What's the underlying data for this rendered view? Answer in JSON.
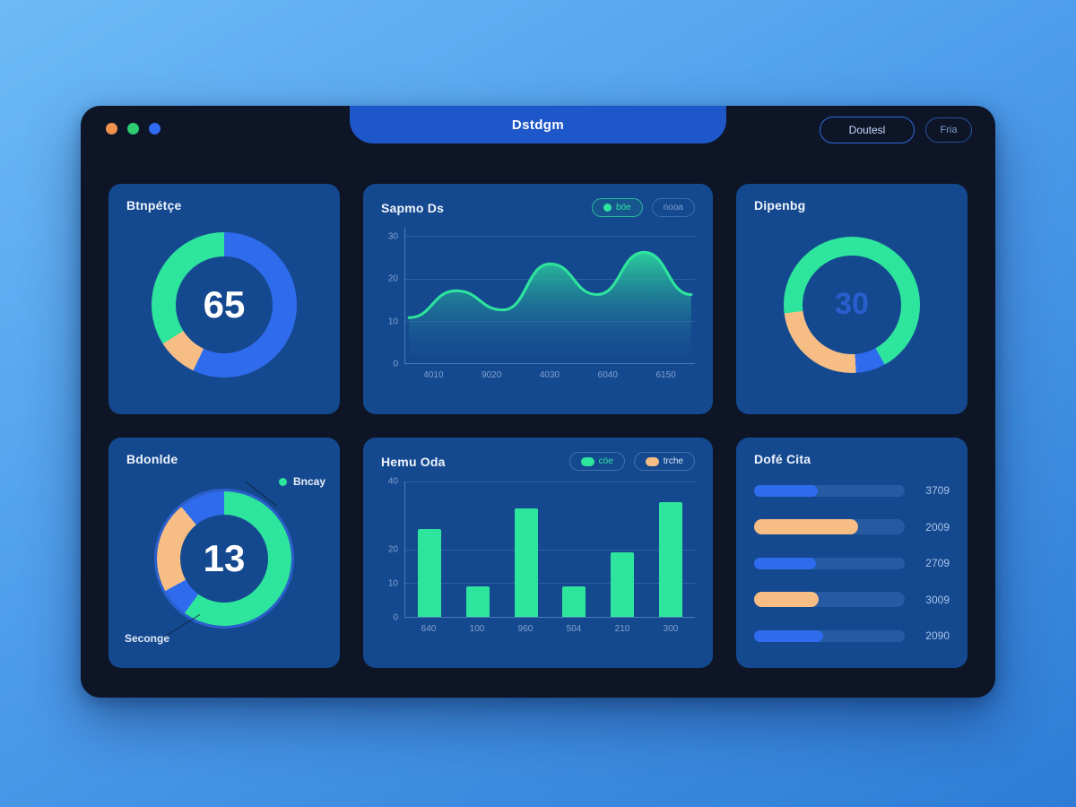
{
  "window": {
    "title": "Dstdgm",
    "traffic_lights": [
      "tl_orange",
      "tl_green",
      "tl_blue"
    ],
    "buttons": [
      {
        "label": "Doutesl"
      },
      {
        "label": "Fria"
      }
    ]
  },
  "colors": {
    "green": "#2ee59d",
    "blue": "#2f6bed",
    "orange": "#f6bd85",
    "tl_orange": "#f0924e",
    "tl_green": "#2ecc71",
    "tl_blue": "#2f6bf0",
    "card_bg": "#15498f",
    "window_bg": "#0d1526",
    "titlebar_blue": "#1e57c9",
    "area_fill_fade": "#1b4f9a"
  },
  "cards": {
    "donut_top_left": {
      "title": "Btnpétçe"
    },
    "area": {
      "title": "Sapmo Ds",
      "toggles": [
        {
          "label": "böe",
          "active": true
        },
        {
          "label": "nooa",
          "active": false
        }
      ]
    },
    "donut_top_right": {
      "title": "Dipenbg"
    },
    "donut_bottom_left": {
      "title": "Bdonlde",
      "legend": "Bncay",
      "callout": "Seconge"
    },
    "bar": {
      "title": "Hemu Oda",
      "legend": [
        {
          "label": "cöe",
          "color": "green"
        },
        {
          "label": "trche",
          "color": "orange"
        }
      ]
    },
    "hbar": {
      "title": "Dofé Cita"
    }
  },
  "chart_data": [
    {
      "type": "pie",
      "variant": "donut",
      "card": "top-left",
      "center_value": "65",
      "segments": [
        {
          "color": "blue",
          "pct": 57
        },
        {
          "color": "orange",
          "pct": 9
        },
        {
          "color": "green",
          "pct": 34
        }
      ]
    },
    {
      "type": "area",
      "card": "top-middle",
      "title": "Sapmo Ds",
      "x_labels": [
        "4010",
        "9020",
        "4030",
        "6040",
        "6150"
      ],
      "y_ticks": [
        30,
        20,
        10,
        0
      ],
      "ylim": [
        0,
        32
      ],
      "values": [
        10,
        17,
        12,
        24,
        16,
        27,
        16
      ],
      "grid": true,
      "line_color": "green"
    },
    {
      "type": "pie",
      "variant": "donut",
      "card": "top-right",
      "center_value": "30",
      "segments": [
        {
          "color": "green",
          "pct": 42
        },
        {
          "color": "blue",
          "pct": 7
        },
        {
          "color": "orange",
          "pct": 24
        },
        {
          "color": "green",
          "pct": 27
        }
      ]
    },
    {
      "type": "pie",
      "variant": "donut",
      "card": "bottom-left",
      "center_value": "13",
      "segments": [
        {
          "color": "green",
          "pct": 60
        },
        {
          "color": "blue",
          "pct": 7
        },
        {
          "color": "orange",
          "pct": 22
        },
        {
          "color": "blue",
          "pct": 11
        }
      ]
    },
    {
      "type": "bar",
      "card": "bottom-middle",
      "title": "Hemu Oda",
      "categories": [
        "640",
        "100",
        "960",
        "504",
        "210",
        "300"
      ],
      "values": [
        26,
        9,
        32,
        9,
        19,
        34
      ],
      "y_ticks": [
        40,
        20,
        10,
        0
      ],
      "ylim": [
        0,
        40
      ],
      "bar_color": "green",
      "grid": true
    },
    {
      "type": "bar",
      "variant": "horizontal",
      "card": "bottom-right",
      "title": "Dofé Cita",
      "rows": [
        {
          "value": "3709",
          "color": "blue",
          "pct": 42
        },
        {
          "value": "2009",
          "color": "orange",
          "pct": 69
        },
        {
          "value": "2709",
          "color": "blue",
          "pct": 41
        },
        {
          "value": "3009",
          "color": "orange",
          "pct": 43
        },
        {
          "value": "2090",
          "color": "blue",
          "pct": 46
        }
      ]
    }
  ]
}
